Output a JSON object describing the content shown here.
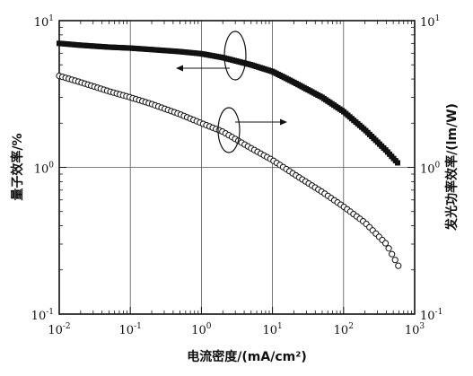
{
  "chart_data": {
    "type": "scatter",
    "title": "",
    "xlabel": "电流密度/(mA/cm²)",
    "ylabel_left": "量子效率/%",
    "ylabel_right": "发光功率效率/(lm/W)",
    "x_scale": "log",
    "y_scale": "log",
    "xlim": [
      0.01,
      1000
    ],
    "ylim": [
      0.1,
      10
    ],
    "grid": true,
    "x_ticks": [
      {
        "base": "10",
        "exp": "-2",
        "value": 0.01
      },
      {
        "base": "10",
        "exp": "-1",
        "value": 0.1
      },
      {
        "base": "10",
        "exp": "0",
        "value": 1
      },
      {
        "base": "10",
        "exp": "1",
        "value": 10
      },
      {
        "base": "10",
        "exp": "2",
        "value": 100
      },
      {
        "base": "10",
        "exp": "3",
        "value": 1000
      }
    ],
    "y_ticks_left": [
      {
        "base": "10",
        "exp": "1",
        "value": 10
      },
      {
        "base": "10",
        "exp": "0",
        "value": 1
      },
      {
        "base": "10",
        "exp": "-1",
        "value": 0.1
      }
    ],
    "y_ticks_right": [
      {
        "base": "10",
        "exp": "1",
        "value": 10
      },
      {
        "base": "10",
        "exp": "0",
        "value": 1
      },
      {
        "base": "10",
        "exp": "-1",
        "value": 0.1
      }
    ],
    "series": [
      {
        "marker": "filled-square",
        "axis": "left",
        "x": [
          0.01,
          0.02,
          0.05,
          0.1,
          0.2,
          0.5,
          1,
          2,
          5,
          10,
          20,
          50,
          100,
          200,
          400,
          600
        ],
        "y": [
          7.0,
          6.8,
          6.6,
          6.5,
          6.35,
          6.15,
          5.95,
          5.6,
          5.0,
          4.5,
          3.8,
          3.0,
          2.4,
          1.8,
          1.3,
          1.05
        ]
      },
      {
        "marker": "open-circle",
        "axis": "right",
        "x": [
          0.01,
          0.02,
          0.05,
          0.1,
          0.2,
          0.5,
          1,
          2,
          5,
          10,
          20,
          50,
          100,
          200,
          400,
          600
        ],
        "y": [
          4.2,
          3.8,
          3.3,
          3.0,
          2.7,
          2.3,
          2.0,
          1.75,
          1.35,
          1.12,
          0.9,
          0.68,
          0.54,
          0.42,
          0.3,
          0.21
        ]
      }
    ]
  }
}
